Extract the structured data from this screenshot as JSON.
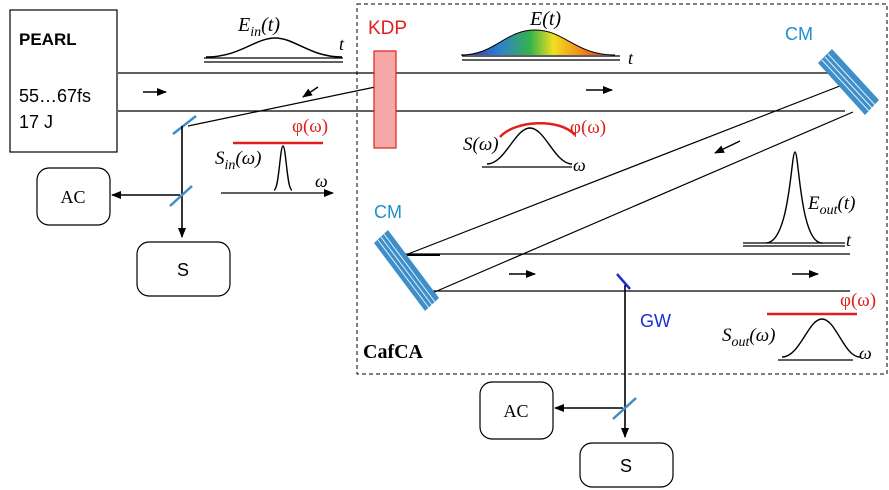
{
  "source_box": {
    "title": "PEARL",
    "line1": "55…67fs",
    "line2": "17 J"
  },
  "labels": {
    "input_pulse": "E",
    "input_pulse_sub": "in",
    "input_pulse_arg": "(t)",
    "input_time_axis": "t",
    "kdp": "KDP",
    "chirped_pulse": "E(t)",
    "chirped_time_axis": "t",
    "cm_top": "CM",
    "cm_left": "CM",
    "phase_input": "φ(ω)",
    "spectrum_in": "S",
    "spectrum_in_sub": "in",
    "spectrum_in_arg": "(ω)",
    "omega_in": "ω",
    "spectrum_mid": "S(ω)",
    "phase_mid": "φ(ω)",
    "omega_mid": "ω",
    "output_pulse": "E",
    "output_pulse_sub": "out",
    "output_pulse_arg": "(t)",
    "output_time_axis": "t",
    "phase_output": "φ(ω)",
    "spectrum_out": "S",
    "spectrum_out_sub": "out",
    "spectrum_out_arg": "(ω)",
    "omega_out": "ω",
    "gw": "GW",
    "cafca": "CafCA"
  },
  "detector_boxes": {
    "ac_left": "AC",
    "s_left": "S",
    "ac_bottom": "AC",
    "s_bottom": "S"
  },
  "colors": {
    "kdp": "#e0201a",
    "cm": "#1f8fcc",
    "phase": "#e0201a",
    "gw": "#1a2fd0",
    "kdp_fill": "#f4a9a6",
    "mirror_stripe": "#3e8fc9"
  }
}
